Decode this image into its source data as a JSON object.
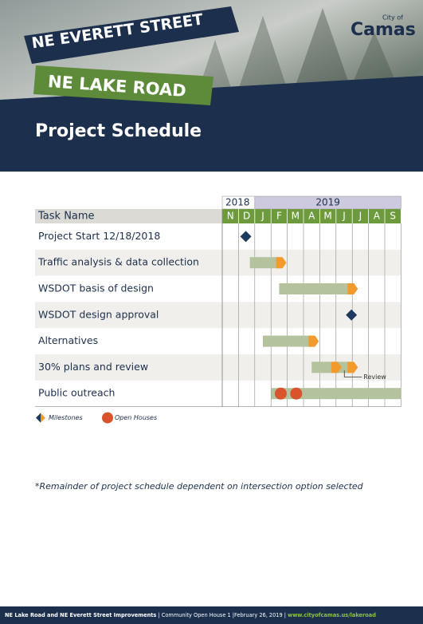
{
  "header": {
    "banner_top": "NE EVERETT STREET",
    "banner_bottom": "NE LAKE ROAD",
    "logo_small": "City of",
    "logo": "Camas",
    "title": "Project Schedule"
  },
  "schedule": {
    "task_header": "Task Name",
    "years": [
      {
        "label": "2018",
        "months": 2
      },
      {
        "label": "2019",
        "months": 9
      }
    ],
    "months": [
      "N",
      "D",
      "J",
      "F",
      "M",
      "A",
      "M",
      "J",
      "J",
      "A",
      "S"
    ],
    "tasks": [
      {
        "name": "Project Start 12/18/2018",
        "milestones": [
          1.45
        ]
      },
      {
        "name": "Traffic analysis & data collection",
        "bars": [
          {
            "start": 1.7,
            "end": 3.8
          }
        ]
      },
      {
        "name": "WSDOT basis of design",
        "bars": [
          {
            "start": 3.5,
            "end": 8.2
          }
        ]
      },
      {
        "name": "WSDOT design approval",
        "milestones": [
          7.95
        ]
      },
      {
        "name": "Alternatives",
        "bars": [
          {
            "start": 2.5,
            "end": 5.8
          }
        ]
      },
      {
        "name": "30% plans and review",
        "bars": [
          {
            "start": 5.5,
            "end": 8.2
          }
        ],
        "reviews": [
          7.1
        ],
        "annotation": "Review"
      },
      {
        "name": "Public outreach",
        "bars": [
          {
            "start": 3.0,
            "end": 11
          }
        ],
        "open_houses": [
          3.6,
          4.55
        ]
      }
    ]
  },
  "legend": {
    "milestones": "Milestones",
    "open_houses": "Open Houses"
  },
  "note": "*Remainder of project schedule dependent on intersection option selected",
  "footer": {
    "title": "NE Lake Road and NE Everett Street Improvements",
    "event": " | Community Open House 1 |February 26, 2019 | ",
    "url": "www.cityofcamas.us/lakeroad"
  }
}
